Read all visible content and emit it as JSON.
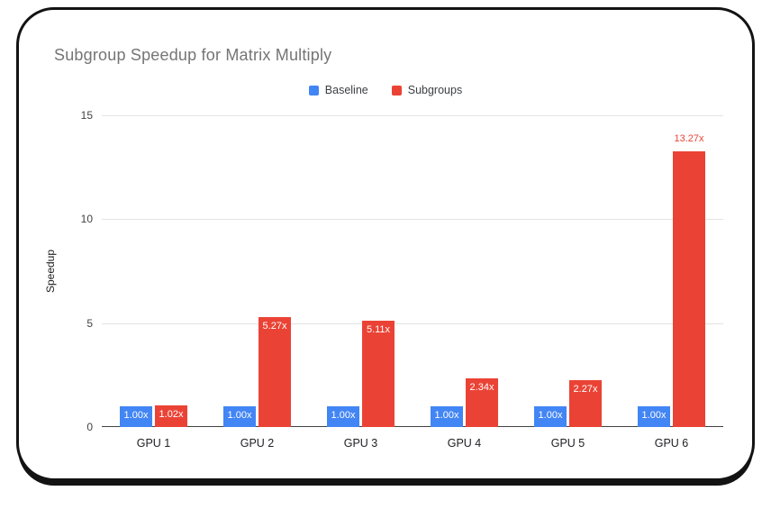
{
  "chart_data": {
    "type": "bar",
    "title": "Subgroup Speedup for Matrix Multiply",
    "categories": [
      "GPU 1",
      "GPU 2",
      "GPU 3",
      "GPU 4",
      "GPU 5",
      "GPU 6"
    ],
    "series": [
      {
        "name": "Baseline",
        "color": "#4285f4",
        "values": [
          1.0,
          1.0,
          1.0,
          1.0,
          1.0,
          1.0
        ],
        "labels": [
          "1.00x",
          "1.00x",
          "1.00x",
          "1.00x",
          "1.00x",
          "1.00x"
        ],
        "label_placement": [
          "inside",
          "inside",
          "inside",
          "inside",
          "inside",
          "inside"
        ]
      },
      {
        "name": "Subgroups",
        "color": "#ea4335",
        "values": [
          1.02,
          5.27,
          5.11,
          2.34,
          2.27,
          13.27
        ],
        "labels": [
          "1.02x",
          "5.27x",
          "5.11x",
          "2.34x",
          "2.27x",
          "13.27x"
        ],
        "label_placement": [
          "inside",
          "inside",
          "inside",
          "inside",
          "inside",
          "above"
        ]
      }
    ],
    "xlabel": "",
    "ylabel": "Speedup",
    "ylim": [
      0,
      15
    ],
    "yticks": [
      0,
      5,
      10,
      15
    ],
    "grid": true,
    "legend_position": "top",
    "inside_label_color": "#ffffff"
  },
  "style": {
    "title_color": "#757575",
    "axis_text_color": "#202124",
    "gridline_color": "#e3e3e3",
    "baseline_color": "#424242",
    "card_border_color": "#131313",
    "background": "#ffffff"
  }
}
